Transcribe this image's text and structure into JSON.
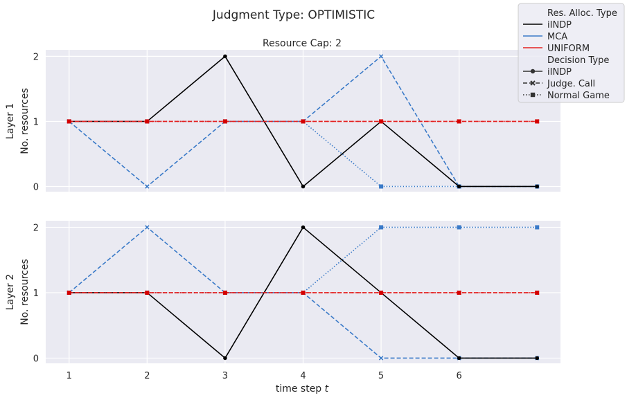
{
  "suptitle": "Judgment Type: OPTIMISTIC",
  "chart_data": {
    "type": "line",
    "x": [
      1,
      2,
      3,
      4,
      5,
      6,
      7
    ],
    "xticks": [
      1,
      2,
      3,
      4,
      5,
      6
    ],
    "yticks": [
      0,
      1,
      2
    ],
    "xlabel": "time step t",
    "xlim": [
      0.7,
      7.3
    ],
    "ylim": [
      -0.08,
      2.1
    ],
    "grid": true,
    "panels": [
      {
        "title": "Resource Cap: 2",
        "ylabel_line1": "Layer 1",
        "ylabel_line2": "No. resources",
        "series": [
          {
            "alloc": "MCA",
            "decision": "Judge. Call",
            "values": [
              1,
              0,
              1,
              1,
              2,
              0,
              0
            ]
          },
          {
            "alloc": "MCA",
            "decision": "Normal Game",
            "values": [
              1,
              1,
              1,
              1,
              0,
              0,
              0
            ]
          },
          {
            "alloc": "iINDP",
            "decision": "iINDP",
            "values": [
              1,
              1,
              2,
              0,
              1,
              0,
              0
            ]
          },
          {
            "alloc": "UNIFORM",
            "decision": "Judge. Call",
            "values": [
              1,
              1,
              1,
              1,
              1,
              1,
              1
            ]
          },
          {
            "alloc": "UNIFORM",
            "decision": "Normal Game",
            "values": [
              1,
              1,
              1,
              1,
              1,
              1,
              1
            ]
          }
        ]
      },
      {
        "title": "",
        "ylabel_line1": "Layer 2",
        "ylabel_line2": "No. resources",
        "series": [
          {
            "alloc": "MCA",
            "decision": "Judge. Call",
            "values": [
              1,
              2,
              1,
              1,
              0,
              0,
              0
            ]
          },
          {
            "alloc": "MCA",
            "decision": "Normal Game",
            "values": [
              1,
              1,
              1,
              1,
              2,
              2,
              2
            ]
          },
          {
            "alloc": "iINDP",
            "decision": "iINDP",
            "values": [
              1,
              1,
              0,
              2,
              1,
              0,
              0
            ]
          },
          {
            "alloc": "UNIFORM",
            "decision": "Judge. Call",
            "values": [
              1,
              1,
              1,
              1,
              1,
              1,
              1
            ]
          },
          {
            "alloc": "UNIFORM",
            "decision": "Normal Game",
            "values": [
              1,
              1,
              1,
              1,
              1,
              1,
              1
            ]
          }
        ]
      }
    ],
    "legend": {
      "placement": "top-right",
      "alloc_title": "Res. Alloc. Type",
      "alloc_entries": [
        {
          "label": "iINDP",
          "color": "#000000"
        },
        {
          "label": "MCA",
          "color": "#3a7ac8"
        },
        {
          "label": "UNIFORM",
          "color": "#e32020"
        }
      ],
      "decision_title": "Decision Type",
      "decision_entries": [
        {
          "label": "iINDP",
          "dash": "solid",
          "marker": "circle"
        },
        {
          "label": "Judge. Call",
          "dash": "dashed",
          "marker": "x"
        },
        {
          "label": "Normal Game",
          "dash": "dotted",
          "marker": "square"
        }
      ]
    },
    "colors": {
      "iINDP": "#000000",
      "MCA": "#3a7ac8",
      "UNIFORM": "#e32020",
      "UNIFORM_marker": "#d40000"
    }
  }
}
